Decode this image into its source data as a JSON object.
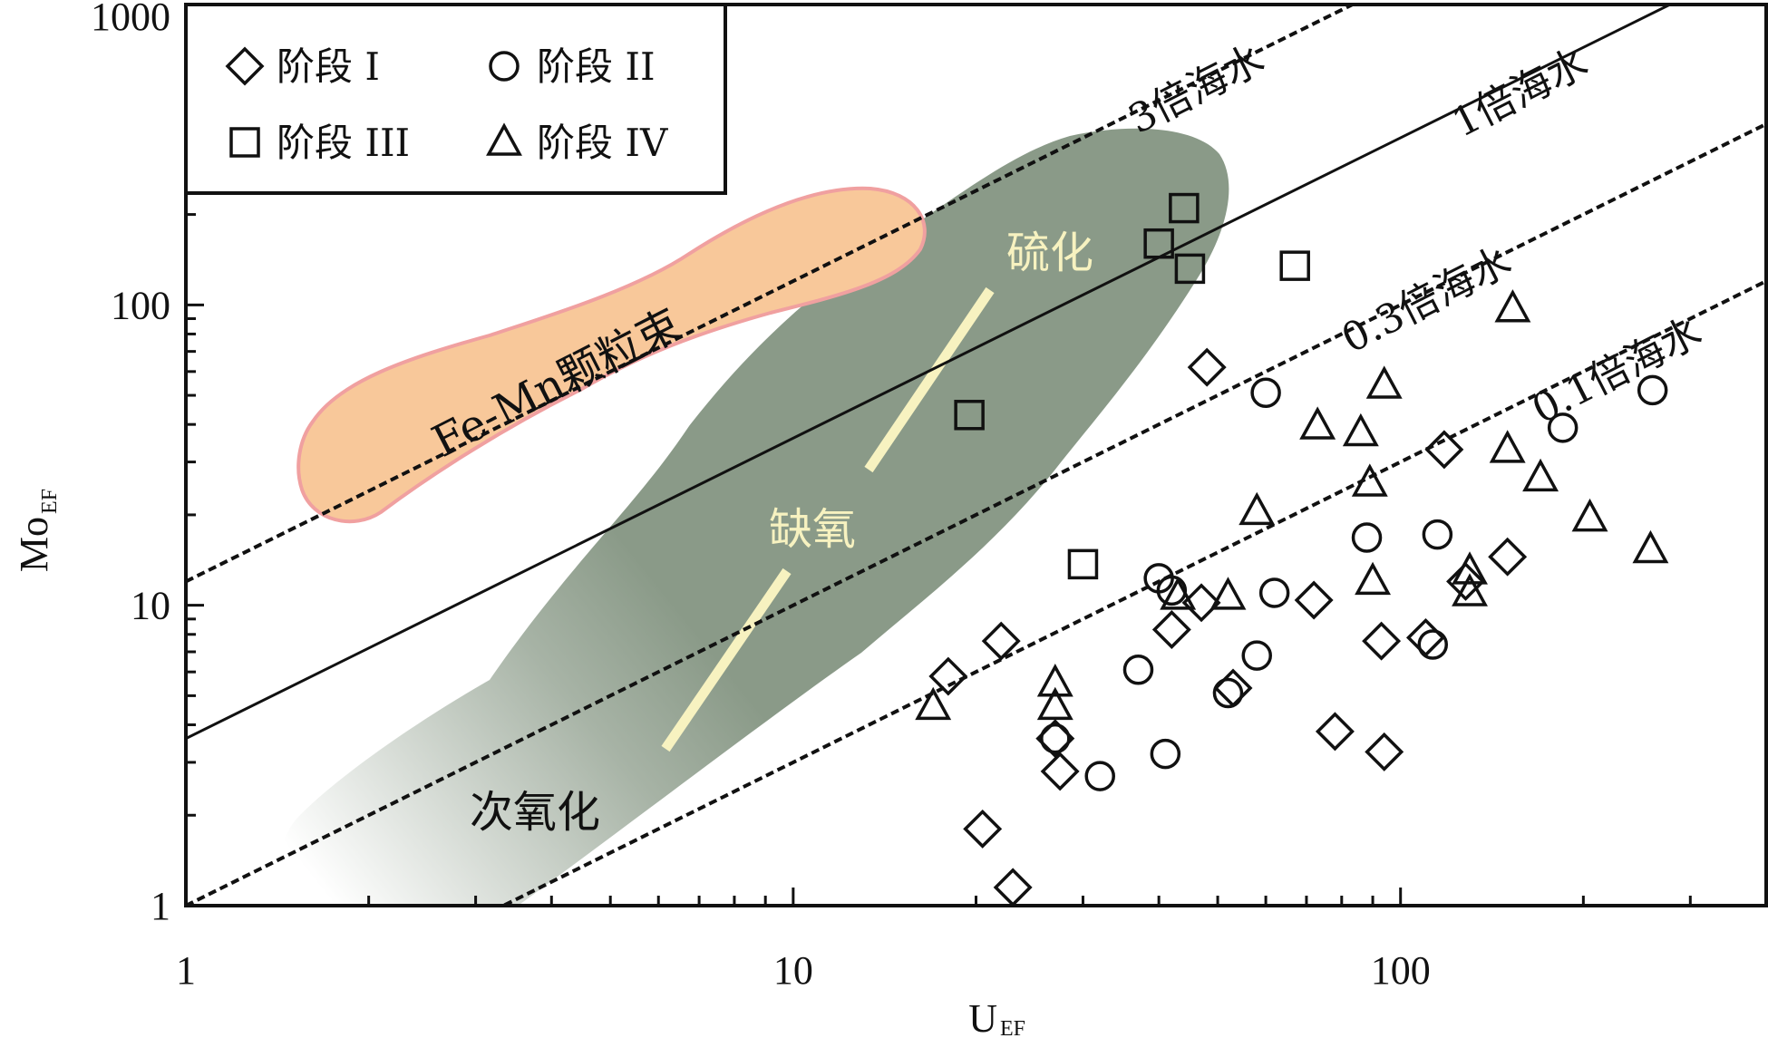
{
  "chart_data": {
    "type": "scatter",
    "xlabel": "U",
    "xlabel_sub": "EF",
    "ylabel": "Mo",
    "ylabel_sub": "EF",
    "x_scale": "log",
    "y_scale": "log",
    "xlim": [
      1,
      400
    ],
    "ylim": [
      1,
      1000
    ],
    "x_ticks": [
      {
        "value": 1,
        "label": "1"
      },
      {
        "value": 10,
        "label": "10"
      },
      {
        "value": 100,
        "label": "100"
      }
    ],
    "y_ticks": [
      {
        "value": 1,
        "label": "1"
      },
      {
        "value": 10,
        "label": "10"
      },
      {
        "value": 100,
        "label": "100"
      },
      {
        "value": 1000,
        "label": "1000"
      }
    ],
    "legend_position": "top-left",
    "reference_lines": [
      {
        "label": "3倍海水",
        "ratio": 12.0,
        "style": "dashed"
      },
      {
        "label": "1倍海水",
        "ratio": 3.6,
        "style": "solid"
      },
      {
        "label": "0.3倍海水",
        "ratio": 1.0,
        "style": "dashed"
      },
      {
        "label": "0.1倍海水",
        "ratio": 0.3,
        "style": "dashed"
      }
    ],
    "regions": [
      {
        "label": "Fe-Mn颗粒束",
        "color": "#f8c89a",
        "border": "#f0a0a0",
        "label_color": "#111111"
      },
      {
        "label": "硫化",
        "color": "#8a9a88",
        "label_color": "#f7f2c0"
      },
      {
        "label": "缺氧",
        "color": "#8a9a88",
        "label_color": "#f7f2c0"
      },
      {
        "label": "次氧化",
        "color": "#c8d0c8",
        "label_color": "#111111"
      }
    ],
    "trend_color": "#f7f2c0",
    "series": [
      {
        "name": "阶段 I",
        "marker": "diamond",
        "points": [
          [
            18,
            5.8
          ],
          [
            22,
            7.6
          ],
          [
            20.5,
            1.8
          ],
          [
            23,
            1.15
          ],
          [
            27,
            3.6
          ],
          [
            27.5,
            2.8
          ],
          [
            42,
            8.3
          ],
          [
            47,
            10.2
          ],
          [
            48,
            62
          ],
          [
            53,
            5.3
          ],
          [
            72,
            10.4
          ],
          [
            78,
            3.8
          ],
          [
            93,
            7.6
          ],
          [
            94,
            3.25
          ],
          [
            110,
            7.8
          ],
          [
            118,
            33
          ],
          [
            150,
            14.5
          ],
          [
            128,
            12
          ]
        ]
      },
      {
        "name": "阶段 II",
        "marker": "circle",
        "points": [
          [
            27,
            3.6
          ],
          [
            32,
            2.7
          ],
          [
            37,
            6.1
          ],
          [
            41,
            3.2
          ],
          [
            40,
            12.3
          ],
          [
            42,
            11.2
          ],
          [
            52,
            5.1
          ],
          [
            58,
            6.8
          ],
          [
            62,
            11
          ],
          [
            60,
            51
          ],
          [
            88,
            16.8
          ],
          [
            113,
            7.4
          ],
          [
            115,
            17.2
          ],
          [
            185,
            39
          ],
          [
            260,
            52
          ]
        ]
      },
      {
        "name": "阶段 III",
        "marker": "square",
        "points": [
          [
            19.5,
            43
          ],
          [
            30,
            13.7
          ],
          [
            40,
            160
          ],
          [
            44,
            210
          ],
          [
            45,
            132
          ],
          [
            67,
            135
          ]
        ]
      },
      {
        "name": "阶段 IV",
        "marker": "triangle",
        "points": [
          [
            17,
            4.6
          ],
          [
            27,
            5.5
          ],
          [
            27,
            4.6
          ],
          [
            43,
            10.7
          ],
          [
            52,
            10.7
          ],
          [
            58,
            20.5
          ],
          [
            73,
            39.5
          ],
          [
            86,
            37.5
          ],
          [
            89,
            25.5
          ],
          [
            90,
            12
          ],
          [
            94,
            54
          ],
          [
            130,
            13
          ],
          [
            130,
            11
          ],
          [
            150,
            33
          ],
          [
            153,
            97
          ],
          [
            170,
            26.5
          ],
          [
            205,
            19.5
          ],
          [
            258,
            15.3
          ]
        ]
      }
    ]
  }
}
